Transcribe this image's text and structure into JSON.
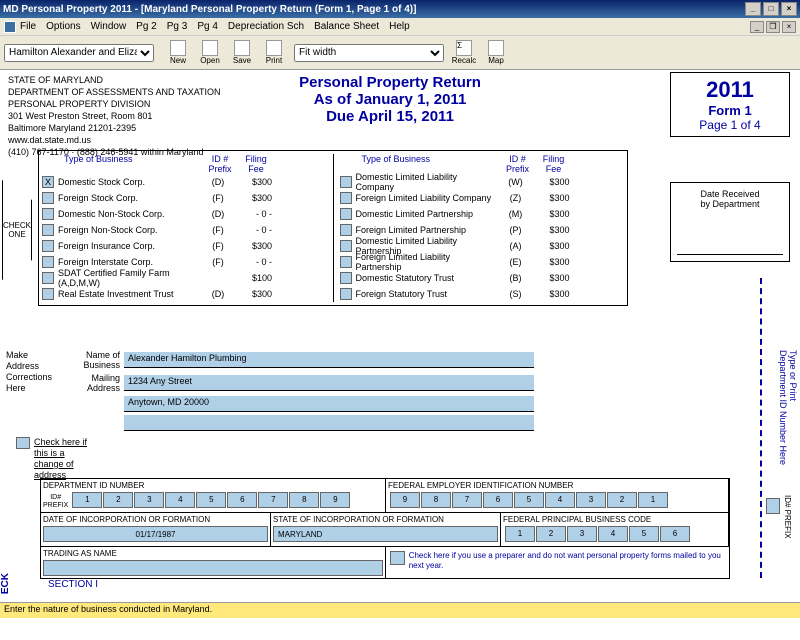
{
  "window": {
    "title": "MD Personal Property 2011 - [Maryland Personal Property Return (Form 1, Page 1 of 4)]"
  },
  "menu": {
    "file": "File",
    "options": "Options",
    "window": "Window",
    "pg2": "Pg 2",
    "pg3": "Pg 3",
    "pg4": "Pg 4",
    "depsch": "Depreciation Sch",
    "balsheet": "Balance Sheet",
    "help": "Help"
  },
  "toolbar": {
    "client": "Hamilton Alexander and Eliza",
    "new": "New",
    "open": "Open",
    "save": "Save",
    "print": "Print",
    "fitwidth": "Fit width",
    "recalc": "Recalc",
    "map": "Map"
  },
  "header": {
    "state": "STATE OF MARYLAND",
    "dept": "DEPARTMENT OF ASSESSMENTS AND TAXATION",
    "div": "PERSONAL PROPERTY DIVISION",
    "addr1": "301 West Preston Street, Room 801",
    "addr2": "Baltimore Maryland 21201-2395",
    "url": "www.dat.state.md.us",
    "phone": "(410) 767-1170 · (888) 246-5941 within Maryland",
    "title1": "Personal Property Return",
    "title2": "As of January 1, 2011",
    "title3": "Due April 15, 2011",
    "year": "2011",
    "form": "Form 1",
    "page": "Page 1 of 4",
    "daterecv1": "Date Received",
    "daterecv2": "by Department"
  },
  "checkone": {
    "l1": "CHECK",
    "l2": "ONE"
  },
  "biz": {
    "hdr_tob": "Type of Business",
    "hdr_id": "ID #",
    "hdr_pfx": "Prefix",
    "hdr_fee": "Filing",
    "hdr_fee2": "Fee",
    "left": [
      {
        "name": "Domestic Stock Corp.",
        "id": "(D)",
        "fee": "$300",
        "x": "X"
      },
      {
        "name": "Foreign Stock Corp.",
        "id": "(F)",
        "fee": "$300"
      },
      {
        "name": "Domestic Non-Stock Corp.",
        "id": "(D)",
        "fee": "- 0 -"
      },
      {
        "name": "Foreign Non-Stock Corp.",
        "id": "(F)",
        "fee": "- 0 -"
      },
      {
        "name": "Foreign Insurance Corp.",
        "id": "(F)",
        "fee": "$300"
      },
      {
        "name": "Foreign Interstate Corp.",
        "id": "(F)",
        "fee": "- 0 -"
      },
      {
        "name": "SDAT Certified Family  Farm (A,D,M,W)",
        "id": "",
        "fee": "$100"
      },
      {
        "name": "Real Estate Investment Trust",
        "id": "(D)",
        "fee": "$300"
      }
    ],
    "right": [
      {
        "name": "Domestic Limited Liability Company",
        "id": "(W)",
        "fee": "$300"
      },
      {
        "name": "Foreign Limited Liability Company",
        "id": "(Z)",
        "fee": "$300"
      },
      {
        "name": "Domestic Limited Partnership",
        "id": "(M)",
        "fee": "$300"
      },
      {
        "name": "Foreign Limited Partnership",
        "id": "(P)",
        "fee": "$300"
      },
      {
        "name": "Domestic Limited Liability Partnership",
        "id": "(A)",
        "fee": "$300"
      },
      {
        "name": "Foreign Limited Liability Partnership",
        "id": "(E)",
        "fee": "$300"
      },
      {
        "name": "Domestic Statutory Trust",
        "id": "(B)",
        "fee": "$300"
      },
      {
        "name": "Foreign Statutory Trust",
        "id": "(S)",
        "fee": "$300"
      }
    ]
  },
  "addr": {
    "sidetxt": "Make\nAddress\nCorrections\nHere",
    "name_lbl": "Name of\nBusiness",
    "name_val": "Alexander Hamilton Plumbing",
    "mail_lbl": "Mailing\nAddress",
    "mail_val": "1234 Any Street",
    "city_val": "Anytown, MD 20000",
    "chg_txt": "Check here if this is a change of address"
  },
  "idsec": {
    "deptid_lbl": "DEPARTMENT ID NUMBER",
    "idprefix_lbl": "ID#\nPREFIX",
    "deptid": [
      "1",
      "2",
      "3",
      "4",
      "5",
      "6",
      "7",
      "8",
      "9"
    ],
    "fein_lbl": "FEDERAL EMPLOYER IDENTIFICATION NUMBER",
    "fein": [
      "9",
      "8",
      "7",
      "6",
      "5",
      "4",
      "3",
      "2",
      "1"
    ],
    "datincorp_lbl": "DATE OF INCORPORATION OR FORMATION",
    "datincorp": "01/17/1987",
    "stincorp_lbl": "STATE OF INCORPORATION OR FORMATION",
    "stincorp": "MARYLAND",
    "fedcode_lbl": "FEDERAL PRINCIPAL BUSINESS CODE",
    "fedcode": [
      "1",
      "2",
      "3",
      "4",
      "5",
      "6"
    ],
    "trading_lbl": "TRADING AS NAME",
    "preparer_txt": "Check here if you use a preparer and do not want personal property forms mailed to you next year."
  },
  "sidev": "Type or Print\nDepartment ID Number Here",
  "idpfx_side": "ID# PREFIX",
  "eck": "ECK",
  "section1": "SECTION I",
  "status": "Enter the nature of business conducted in Maryland."
}
